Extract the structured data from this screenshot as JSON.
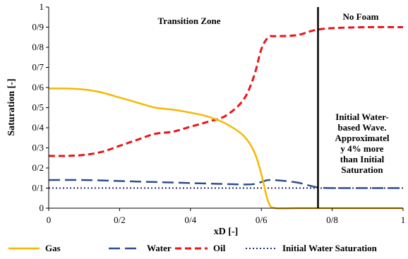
{
  "chart_data": {
    "type": "line",
    "title": "",
    "xlabel": "xD [-]",
    "ylabel": "Saturation [-]",
    "xlim": [
      0,
      1
    ],
    "ylim": [
      0,
      1
    ],
    "x_ticks": [
      "0",
      "0/2",
      "0/4",
      "0/6",
      "0/8",
      "1"
    ],
    "y_ticks": [
      "0",
      "0/1",
      "0/2",
      "0/3",
      "0/4",
      "0/5",
      "0/6",
      "0/7",
      "0/8",
      "0/9",
      "1"
    ],
    "grid": false,
    "legend_position": "bottom",
    "series": [
      {
        "name": "Gas",
        "color": "#F5B800",
        "dash": "solid",
        "x": [
          0,
          0.05,
          0.1,
          0.15,
          0.2,
          0.25,
          0.3,
          0.35,
          0.4,
          0.45,
          0.5,
          0.55,
          0.58,
          0.6,
          0.62,
          0.64,
          0.7,
          0.8,
          0.9,
          1.0
        ],
        "y": [
          0.595,
          0.595,
          0.59,
          0.575,
          0.55,
          0.525,
          0.5,
          0.49,
          0.475,
          0.455,
          0.42,
          0.36,
          0.28,
          0.17,
          0.03,
          0.0,
          0.0,
          0.0,
          0.0,
          0.0
        ]
      },
      {
        "name": "Water",
        "color": "#2F4E8C",
        "dash": "long-dash",
        "x": [
          0,
          0.1,
          0.2,
          0.3,
          0.4,
          0.5,
          0.55,
          0.58,
          0.6,
          0.62,
          0.65,
          0.7,
          0.73,
          0.76,
          0.8,
          0.9,
          1.0
        ],
        "y": [
          0.14,
          0.14,
          0.135,
          0.13,
          0.125,
          0.12,
          0.118,
          0.12,
          0.13,
          0.14,
          0.138,
          0.128,
          0.115,
          0.103,
          0.1,
          0.1,
          0.1
        ]
      },
      {
        "name": "Oil",
        "color": "#E8161B",
        "dash": "dash",
        "x": [
          0,
          0.05,
          0.1,
          0.15,
          0.2,
          0.25,
          0.3,
          0.35,
          0.4,
          0.45,
          0.5,
          0.55,
          0.58,
          0.6,
          0.62,
          0.64,
          0.7,
          0.75,
          0.8,
          0.9,
          1.0
        ],
        "y": [
          0.26,
          0.26,
          0.265,
          0.28,
          0.31,
          0.34,
          0.37,
          0.38,
          0.405,
          0.43,
          0.46,
          0.54,
          0.66,
          0.79,
          0.85,
          0.855,
          0.86,
          0.885,
          0.895,
          0.9,
          0.9
        ]
      },
      {
        "name": "Initial Water Saturation",
        "color": "#1F2F6B",
        "dash": "dotted",
        "x": [
          0,
          1
        ],
        "y": [
          0.1,
          0.1
        ]
      }
    ],
    "vertical_line": {
      "x": 0.76,
      "color": "#000000"
    },
    "annotations": {
      "left_region": "Transition Zone",
      "right_region": "No Foam",
      "note_lines": [
        "Initial Water-",
        "based Wave.",
        "Approximatel",
        "y 4% more",
        "than Initial",
        "Saturation"
      ]
    }
  }
}
